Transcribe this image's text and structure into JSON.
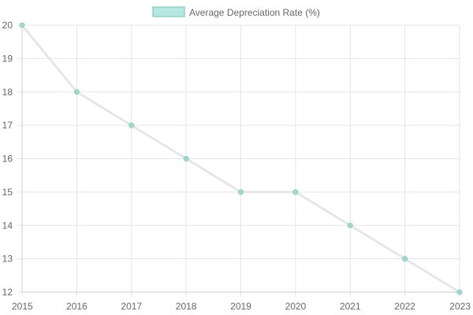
{
  "chart_data": {
    "type": "line",
    "x": [
      "2015",
      "2016",
      "2017",
      "2018",
      "2019",
      "2020",
      "2021",
      "2022",
      "2023"
    ],
    "series": [
      {
        "name": "Average Depreciation Rate (%)",
        "values": [
          20,
          18,
          17,
          16,
          15,
          15,
          14,
          13,
          12
        ]
      }
    ],
    "ylim": [
      12,
      20
    ],
    "yticks": [
      12,
      13,
      14,
      15,
      16,
      17,
      18,
      19,
      20
    ],
    "grid": true,
    "legend": "top-center",
    "colors": {
      "line": "#e6e6e6",
      "point": "#9fd9cf",
      "point_border": "#8ccfc3",
      "legend_fill": "#b5e8e1",
      "legend_border": "#8fd3c8",
      "grid": "#e5e5e5",
      "axis": "#cccccc",
      "tick_text": "#666666"
    }
  }
}
